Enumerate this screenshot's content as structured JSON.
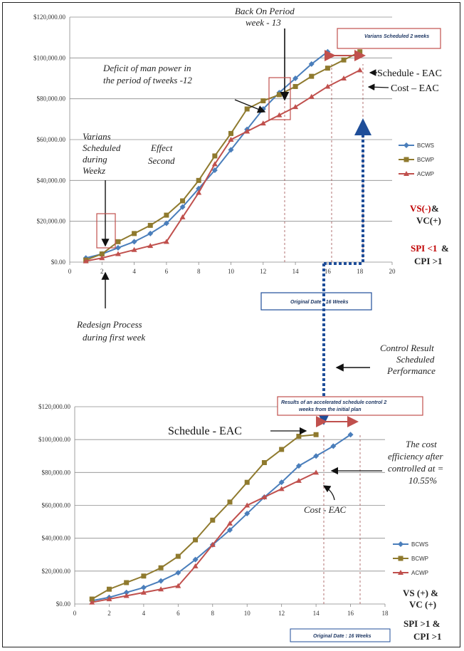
{
  "chart_data": [
    {
      "type": "line",
      "x_ticks": [
        0,
        2,
        4,
        6,
        8,
        10,
        12,
        14,
        16,
        18,
        20
      ],
      "y_ticks": [
        "$0.00",
        "$20,000.00",
        "$40,000.00",
        "$60,000.00",
        "$80,000.00",
        "$100,000.00",
        "$120,000.00"
      ],
      "xlim": [
        0,
        20
      ],
      "ylim": [
        0,
        120000
      ],
      "grid": "horizontal",
      "legend_position": "right",
      "series": [
        {
          "name": "BCWS",
          "color": "#4a7ebb",
          "marker": "diamond",
          "x": [
            1,
            2,
            3,
            4,
            5,
            6,
            7,
            8,
            9,
            10,
            11,
            12,
            13,
            14,
            15,
            16
          ],
          "y": [
            2000,
            4000,
            7000,
            10000,
            14000,
            19000,
            27000,
            36000,
            45000,
            55000,
            65000,
            75000,
            83000,
            90000,
            97000,
            103000
          ]
        },
        {
          "name": "BCWP",
          "color": "#8f7a2e",
          "marker": "square",
          "x": [
            1,
            2,
            3,
            4,
            5,
            6,
            7,
            8,
            9,
            10,
            11,
            12,
            13,
            14,
            15,
            16,
            17,
            18
          ],
          "y": [
            1000,
            4000,
            10000,
            14000,
            18000,
            23000,
            30000,
            40000,
            52000,
            63000,
            75000,
            79000,
            82000,
            86000,
            91000,
            95000,
            99000,
            103000
          ]
        },
        {
          "name": "ACWP",
          "color": "#c0504d",
          "marker": "triangle",
          "x": [
            1,
            2,
            3,
            4,
            5,
            6,
            7,
            8,
            9,
            10,
            11,
            12,
            13,
            14,
            15,
            16,
            17,
            18
          ],
          "y": [
            500,
            2000,
            4000,
            6000,
            8000,
            10000,
            22000,
            34000,
            48000,
            60000,
            64000,
            68000,
            72000,
            76000,
            81000,
            86000,
            90000,
            94000
          ]
        }
      ]
    },
    {
      "type": "line",
      "x_ticks": [
        0,
        2,
        4,
        6,
        8,
        10,
        12,
        14,
        16,
        18
      ],
      "y_ticks": [
        "$0.00",
        "$20,000.00",
        "$40,000.00",
        "$60,000.00",
        "$80,000.00",
        "$100,000.00",
        "$120,000.00"
      ],
      "xlim": [
        0,
        18
      ],
      "ylim": [
        0,
        120000
      ],
      "grid": "horizontal",
      "legend_position": "right",
      "series": [
        {
          "name": "BCWS",
          "color": "#4a7ebb",
          "marker": "diamond",
          "x": [
            1,
            2,
            3,
            4,
            5,
            6,
            7,
            8,
            9,
            10,
            11,
            12,
            13,
            14,
            15,
            16
          ],
          "y": [
            2000,
            4000,
            7000,
            10000,
            14000,
            19000,
            27000,
            36000,
            45000,
            55000,
            65000,
            74000,
            84000,
            90000,
            96000,
            103000
          ]
        },
        {
          "name": "BCWP",
          "color": "#8f7a2e",
          "marker": "square",
          "x": [
            1,
            2,
            3,
            4,
            5,
            6,
            7,
            8,
            9,
            10,
            11,
            12,
            13,
            14
          ],
          "y": [
            3000,
            9000,
            13000,
            17000,
            22000,
            29000,
            39000,
            51000,
            62000,
            74000,
            86000,
            94000,
            102000,
            103000
          ]
        },
        {
          "name": "ACWP",
          "color": "#c0504d",
          "marker": "triangle",
          "x": [
            1,
            2,
            3,
            4,
            5,
            6,
            7,
            8,
            9,
            10,
            11,
            12,
            13,
            14
          ],
          "y": [
            1000,
            3000,
            5000,
            7000,
            9000,
            11000,
            23000,
            36000,
            49000,
            60000,
            65000,
            70000,
            75000,
            80000
          ]
        }
      ]
    }
  ],
  "annotations": {
    "back_on_period": [
      "Back On Period",
      "week - 13"
    ],
    "variance_top_box": "Varians Scheduled 2 weeks",
    "deficit": [
      "Deficit of man power in",
      "the period of tweeks -12"
    ],
    "variance_scheduled": [
      "Varians",
      "Scheduled",
      "during",
      "Weekz"
    ],
    "effect_second": [
      "Effect",
      "Second"
    ],
    "schedule_eac_top": "Schedule - EAC",
    "cost_eac_top": "Cost – EAC",
    "vs_minus": "VS(-)",
    "amp1": "&",
    "vc_plus": "VC(+)",
    "spi_lt": "SPI <1",
    "amp2": "&",
    "cpi_gt": "CPI >1",
    "redesign": [
      "Redesign Process",
      "during first week"
    ],
    "original_date_top": "Original Date : 16 Weeks",
    "control_result": [
      "Control Result",
      "Scheduled",
      "Performance"
    ],
    "results_box": [
      "Results of an accelerated schedule control 2",
      "weeks from the initial plan"
    ],
    "schedule_eac_bottom": "Schedule - EAC",
    "cost_efficiency": [
      "The cost",
      "efficiency after",
      "controlled at =",
      "10.55%"
    ],
    "cost_eac_bottom": "Cost - EAC",
    "vs_plus": "VS (+)  &",
    "vc_plus_b": "VC (+)",
    "spi_gt": "SPI >1 &",
    "cpi_gt_b": "CPI >1",
    "original_date_bottom": "Original Date : 16 Weeks"
  }
}
